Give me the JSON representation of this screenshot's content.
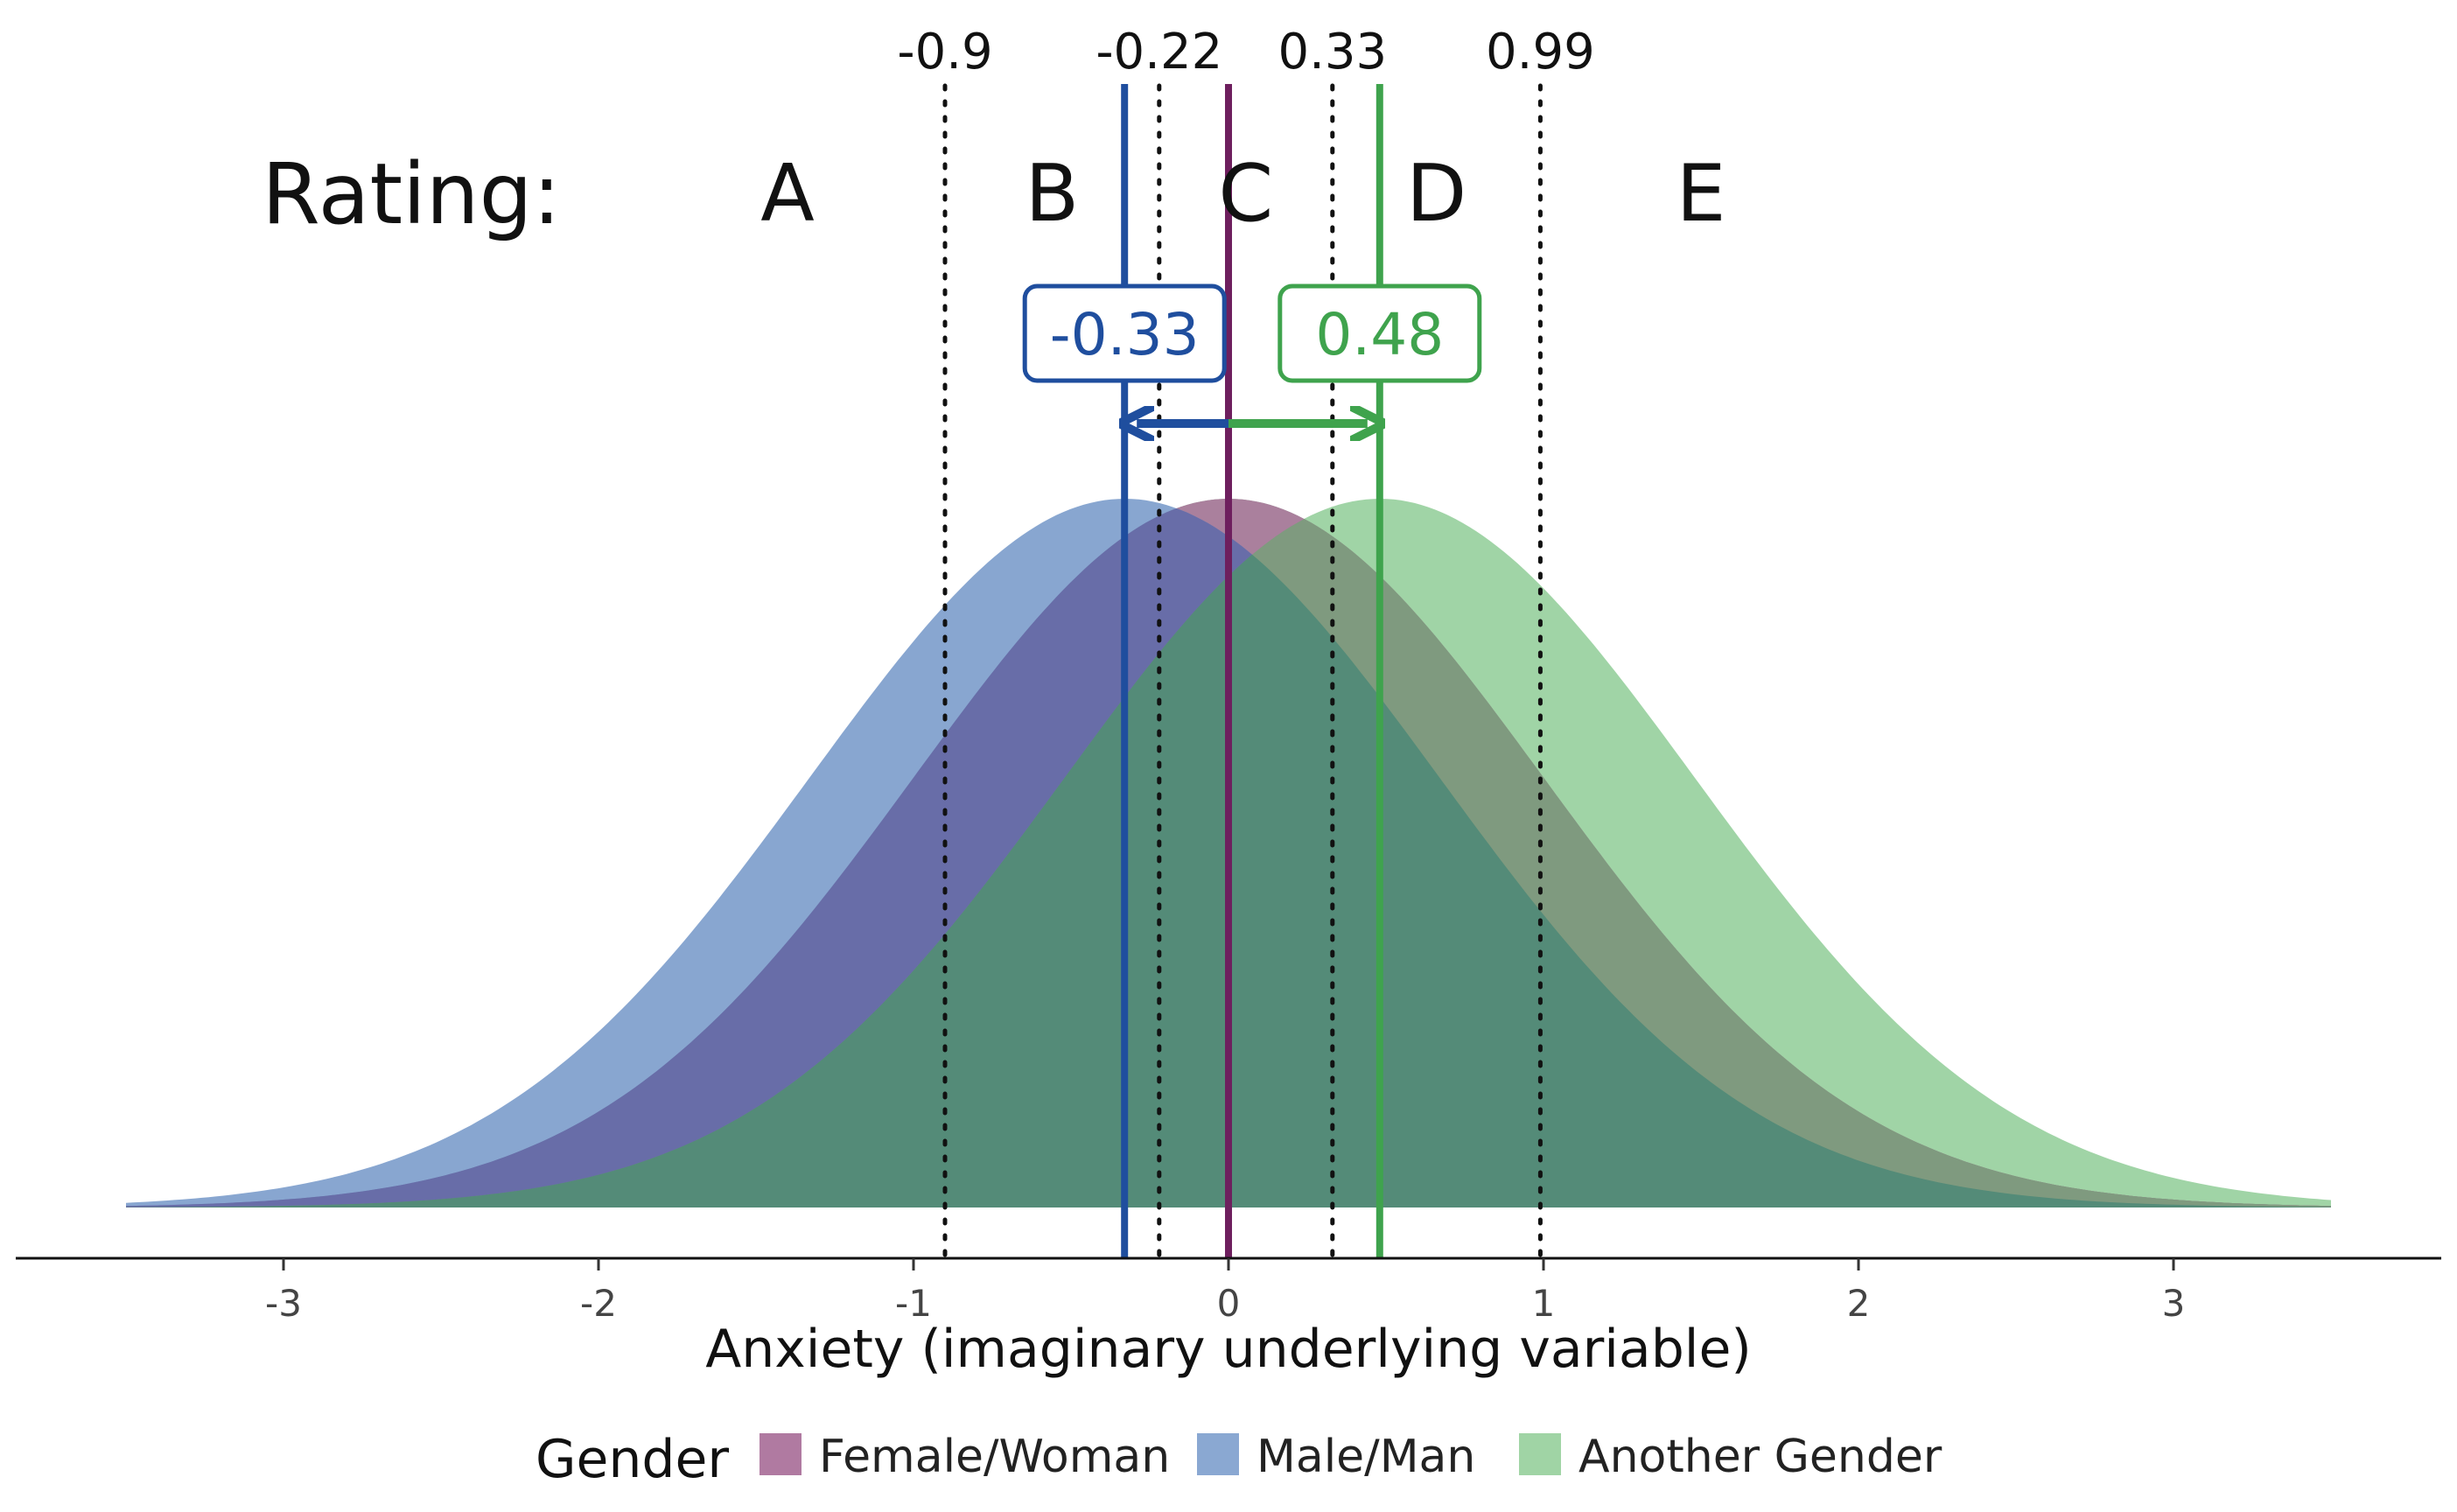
{
  "chart_data": {
    "type": "area",
    "xlabel": "Anxiety (imaginary underlying variable)",
    "xlim": [
      -3.5,
      3.5
    ],
    "x_ticks": [
      -3,
      -2,
      -1,
      0,
      1,
      2,
      3
    ],
    "x_tick_labels": [
      "-3",
      "-2",
      "-1",
      "0",
      "1",
      "2",
      "3"
    ],
    "grid": false,
    "series": [
      {
        "name": "Female/Woman",
        "distribution": "normal",
        "mean": 0,
        "sd": 1,
        "color": "#B07AA1"
      },
      {
        "name": "Male/Man",
        "distribution": "normal",
        "mean": -0.33,
        "sd": 1,
        "color": "#6E93C6"
      },
      {
        "name": "Another Gender",
        "distribution": "normal",
        "mean": 0.48,
        "sd": 1,
        "color": "#8BCB92"
      }
    ],
    "overlap_color": "#548B78",
    "thresholds": [
      {
        "value": -0.9,
        "label": "-0.9"
      },
      {
        "value": -0.22,
        "label": "-0.22"
      },
      {
        "value": 0.33,
        "label": "0.33"
      },
      {
        "value": 0.99,
        "label": "0.99"
      }
    ],
    "rating": {
      "title": "Rating:",
      "categories": [
        "A",
        "B",
        "C",
        "D",
        "E"
      ]
    },
    "mean_lines": [
      {
        "group": "Female/Woman",
        "value": 0,
        "color": "#6E1F5E"
      },
      {
        "group": "Male/Man",
        "value": -0.33,
        "color": "#1F4E9E"
      },
      {
        "group": "Another Gender",
        "value": 0.48,
        "color": "#3FA34D"
      }
    ],
    "shifts": [
      {
        "group": "Male/Man",
        "value": -0.33,
        "label": "-0.33",
        "color": "#1F4E9E"
      },
      {
        "group": "Another Gender",
        "value": 0.48,
        "label": "0.48",
        "color": "#3FA34D"
      }
    ],
    "legend": {
      "title": "Gender",
      "position": "bottom",
      "items": [
        {
          "label": "Female/Woman",
          "color": "#B07AA1"
        },
        {
          "label": "Male/Man",
          "color": "#8AA8D2"
        },
        {
          "label": "Another Gender",
          "color": "#A0D4A5"
        }
      ]
    }
  }
}
